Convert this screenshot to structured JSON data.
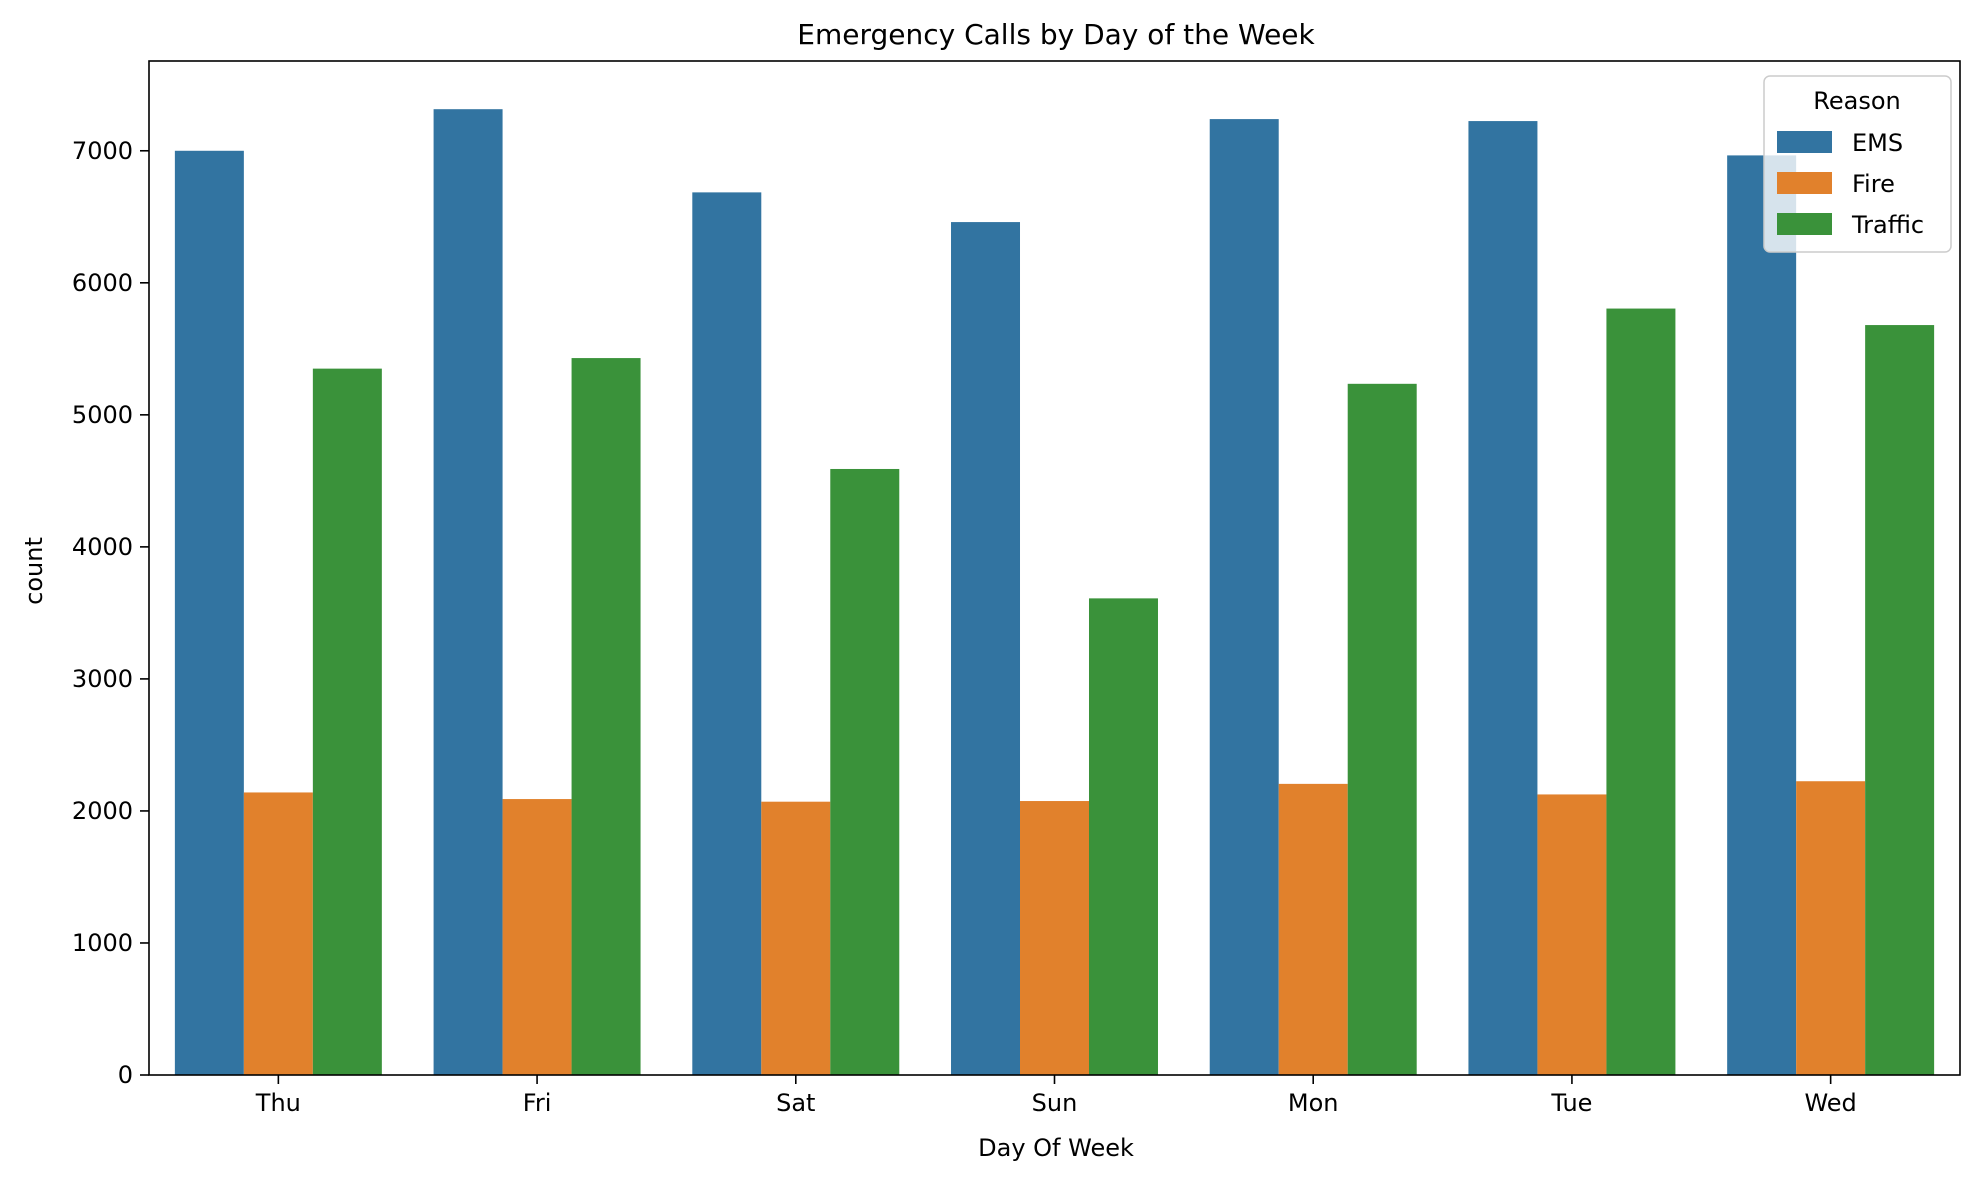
{
  "chart_data": {
    "type": "bar",
    "title": "Emergency Calls by Day of the Week",
    "xlabel": "Day Of Week",
    "ylabel": "count",
    "categories": [
      "Thu",
      "Fri",
      "Sat",
      "Sun",
      "Mon",
      "Tue",
      "Wed"
    ],
    "series": [
      {
        "name": "EMS",
        "color": "#3274a1",
        "values": [
          7000,
          7315,
          6685,
          6460,
          7240,
          7225,
          6965
        ]
      },
      {
        "name": "Fire",
        "color": "#e1812c",
        "values": [
          2140,
          2090,
          2070,
          2075,
          2205,
          2125,
          2225
        ]
      },
      {
        "name": "Traffic",
        "color": "#3a923a",
        "values": [
          5350,
          5430,
          4590,
          3610,
          5235,
          5805,
          5680
        ]
      }
    ],
    "ylim": [
      0,
      7680
    ],
    "yticks": [
      0,
      1000,
      2000,
      3000,
      4000,
      5000,
      6000,
      7000
    ],
    "grid": false,
    "legend": {
      "title": "Reason",
      "placement": "top-right"
    }
  }
}
